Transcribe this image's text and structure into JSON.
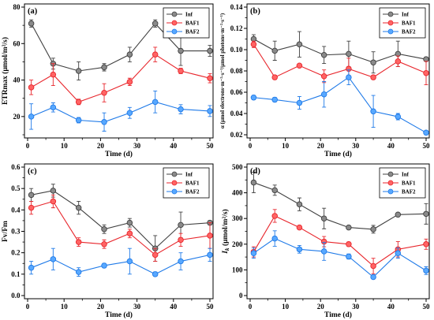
{
  "chart_data": [
    {
      "label": "(a)",
      "type": "line",
      "xlabel": "Time (d)",
      "ylabel": "ETRmax (μmol/m²/s)",
      "xlim": [
        0,
        50
      ],
      "ylim": [
        10,
        80
      ],
      "xticks": [
        "0",
        "10",
        "20",
        "30",
        "40",
        "50"
      ],
      "yticks": [
        "20",
        "40",
        "60",
        "80"
      ],
      "grid": false,
      "legend_position": "top-right",
      "x": [
        1,
        7,
        14,
        21,
        28,
        35,
        42,
        50
      ],
      "series": [
        {
          "name": "Inf",
          "color": "#404040",
          "marker_fill": "#8a8a8a",
          "values": [
            71,
            49,
            45,
            47,
            54,
            71,
            56,
            56
          ],
          "errors": [
            2,
            3,
            5,
            2,
            4,
            2,
            8,
            3
          ]
        },
        {
          "name": "BAF1",
          "color": "#e8262c",
          "marker_fill": "#ff6464",
          "values": [
            36,
            43,
            28,
            33,
            39,
            54,
            45,
            41
          ],
          "errors": [
            4,
            6,
            1.5,
            5,
            2,
            4,
            1.5,
            2.5
          ]
        },
        {
          "name": "BAF2",
          "color": "#1f7ae8",
          "marker_fill": "#58a8ff",
          "values": [
            20,
            25,
            18,
            17,
            22,
            28,
            24,
            23
          ],
          "errors": [
            7,
            2.5,
            1.5,
            5,
            3,
            6,
            2.5,
            3
          ]
        }
      ]
    },
    {
      "label": "(b)",
      "type": "line",
      "xlabel": "Time (d)",
      "ylabel": "α (μmol electrons·m⁻²·s⁻¹/μmol photons·m⁻²·s⁻¹)",
      "xlim": [
        0,
        50
      ],
      "ylim": [
        0.02,
        0.14
      ],
      "xticks": [
        "0",
        "10",
        "20",
        "30",
        "40",
        "50"
      ],
      "yticks": [
        "0.02",
        "0.04",
        "0.06",
        "0.08",
        "0.10",
        "0.12",
        "0.14"
      ],
      "grid": false,
      "legend_position": "top-right",
      "x": [
        1,
        7,
        14,
        21,
        28,
        35,
        42,
        50
      ],
      "series": [
        {
          "name": "Inf",
          "color": "#404040",
          "marker_fill": "#8a8a8a",
          "values": [
            0.11,
            0.099,
            0.105,
            0.095,
            0.096,
            0.088,
            0.096,
            0.091
          ],
          "errors": [
            0.004,
            0.009,
            0.012,
            0.008,
            0.012,
            0.01,
            0.012,
            0.002
          ]
        },
        {
          "name": "BAF1",
          "color": "#e8262c",
          "marker_fill": "#ff6464",
          "values": [
            0.105,
            0.074,
            0.085,
            0.075,
            0.082,
            0.074,
            0.089,
            0.078
          ],
          "errors": [
            0.003,
            0.002,
            0.001,
            0.006,
            0.01,
            0.002,
            0.005,
            0.011
          ]
        },
        {
          "name": "BAF2",
          "color": "#1f7ae8",
          "marker_fill": "#58a8ff",
          "values": [
            0.055,
            0.053,
            0.05,
            0.058,
            0.074,
            0.042,
            0.037,
            0.022
          ],
          "errors": [
            0.002,
            0.002,
            0.006,
            0.012,
            0.007,
            0.015,
            0.003,
            0.001
          ]
        }
      ]
    },
    {
      "label": "(c)",
      "type": "line",
      "xlabel": "Time (d)",
      "ylabel": "Fv/Fm",
      "xlim": [
        0,
        50
      ],
      "ylim": [
        0,
        0.6
      ],
      "xticks": [
        "0",
        "10",
        "20",
        "30",
        "40",
        "50"
      ],
      "yticks": [
        "0.0",
        "0.1",
        "0.2",
        "0.3",
        "0.4",
        "0.5",
        "0.6"
      ],
      "grid": false,
      "legend_position": "top-right",
      "x": [
        1,
        7,
        14,
        21,
        28,
        35,
        42,
        50
      ],
      "series": [
        {
          "name": "Inf",
          "color": "#404040",
          "marker_fill": "#8a8a8a",
          "values": [
            0.47,
            0.49,
            0.41,
            0.31,
            0.34,
            0.22,
            0.33,
            0.34
          ],
          "errors": [
            0.03,
            0.03,
            0.03,
            0.02,
            0.02,
            0.06,
            0.06,
            0.01
          ]
        },
        {
          "name": "BAF1",
          "color": "#e8262c",
          "marker_fill": "#ff6464",
          "values": [
            0.41,
            0.44,
            0.25,
            0.24,
            0.29,
            0.19,
            0.26,
            0.28
          ],
          "errors": [
            0.03,
            0.03,
            0.02,
            0.02,
            0.02,
            0.03,
            0.03,
            0.06
          ]
        },
        {
          "name": "BAF2",
          "color": "#1f7ae8",
          "marker_fill": "#58a8ff",
          "values": [
            0.13,
            0.17,
            0.11,
            0.14,
            0.16,
            0.1,
            0.16,
            0.19
          ],
          "errors": [
            0.03,
            0.05,
            0.02,
            0.01,
            0.06,
            0.01,
            0.04,
            0.03
          ]
        }
      ]
    },
    {
      "label": "(d)",
      "type": "line",
      "xlabel": "Time (d)",
      "ylabel": {
        "symbol": "I",
        "subscript": "k",
        "unit": "(μmol/m²/s)"
      },
      "xlim": [
        0,
        50
      ],
      "ylim": [
        0,
        500
      ],
      "xticks": [
        "0",
        "10",
        "20",
        "30",
        "40",
        "50"
      ],
      "yticks": [
        "0",
        "100",
        "200",
        "300",
        "400",
        "500"
      ],
      "grid": false,
      "legend_position": "top-right",
      "x": [
        1,
        7,
        14,
        21,
        28,
        35,
        42,
        50
      ],
      "series": [
        {
          "name": "Inf",
          "color": "#404040",
          "marker_fill": "#8a8a8a",
          "values": [
            440,
            410,
            355,
            300,
            265,
            258,
            315,
            318
          ],
          "errors": [
            40,
            20,
            25,
            40,
            5,
            15,
            5,
            40
          ]
        },
        {
          "name": "BAF1",
          "color": "#e8262c",
          "marker_fill": "#ff6464",
          "values": [
            170,
            310,
            265,
            210,
            200,
            115,
            180,
            200
          ],
          "errors": [
            20,
            25,
            5,
            20,
            8,
            30,
            30,
            20
          ]
        },
        {
          "name": "BAF2",
          "color": "#1f7ae8",
          "marker_fill": "#58a8ff",
          "values": [
            165,
            222,
            180,
            172,
            152,
            72,
            165,
            97
          ],
          "errors": [
            20,
            30,
            15,
            35,
            10,
            5,
            20,
            15
          ]
        }
      ]
    }
  ]
}
